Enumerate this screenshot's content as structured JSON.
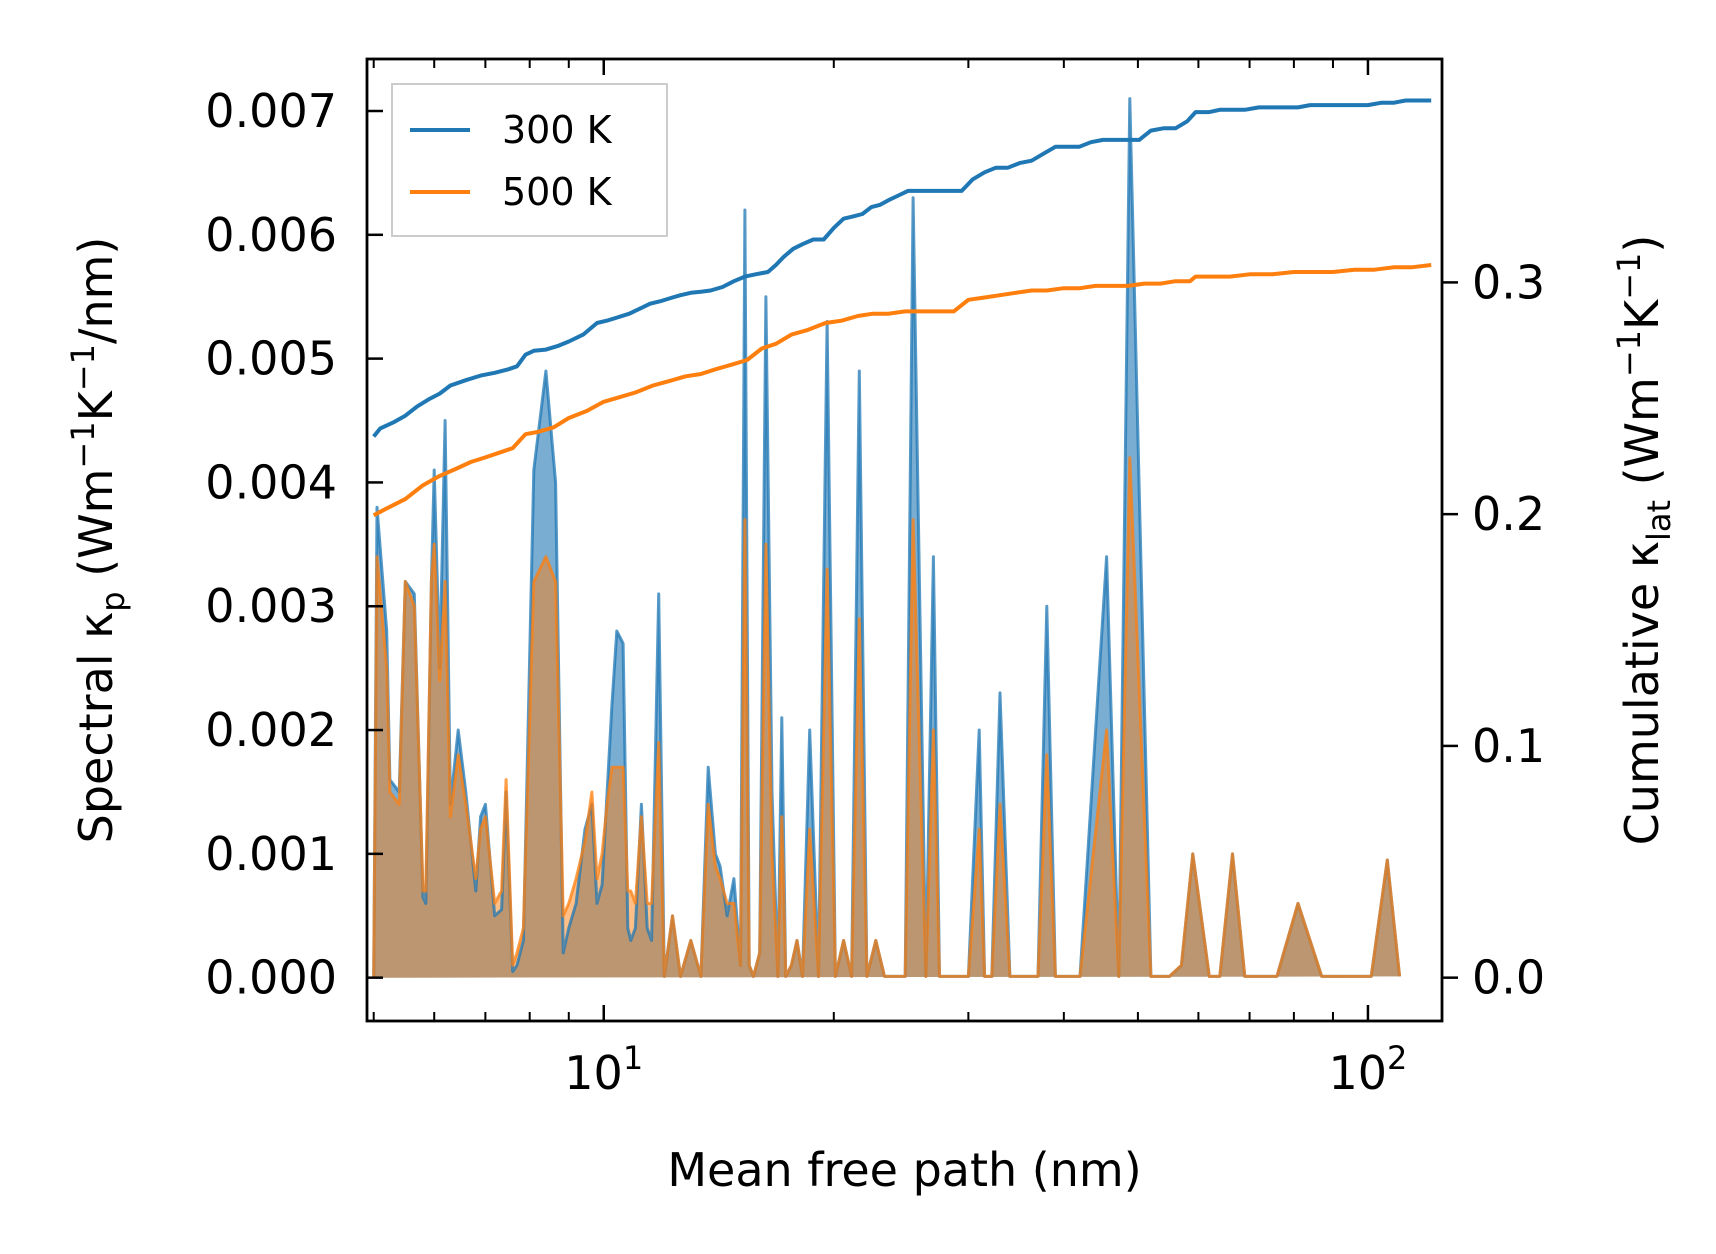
{
  "chart_data": {
    "type": "line",
    "xscale": "log",
    "xlim": [
      4.9,
      125
    ],
    "ylim_left": [
      -0.00035,
      0.00742
    ],
    "ylim_right": [
      -0.0187,
      0.3964
    ],
    "xlabel": "Mean free path (nm)",
    "ylabel_left": {
      "main": "Spectral κ",
      "sub": "p",
      "unit_open": " (Wm",
      "exp1": "−1",
      "unit_mid": "K",
      "exp2": "−1",
      "unit_close": "/nm)"
    },
    "ylabel_right": {
      "main": "Cumulative κ",
      "sub": "lat",
      "unit_open": " (Wm",
      "exp1": "−1",
      "unit_mid": "K",
      "exp2": "−1",
      "unit_close": ")"
    },
    "x_ticks_major": [
      {
        "value": 10,
        "base": "10",
        "exp": "1"
      },
      {
        "value": 100,
        "base": "10",
        "exp": "2"
      }
    ],
    "y_ticks_left": [
      {
        "value": 0.0,
        "label": "0.000"
      },
      {
        "value": 0.001,
        "label": "0.001"
      },
      {
        "value": 0.002,
        "label": "0.002"
      },
      {
        "value": 0.003,
        "label": "0.003"
      },
      {
        "value": 0.004,
        "label": "0.004"
      },
      {
        "value": 0.005,
        "label": "0.005"
      },
      {
        "value": 0.006,
        "label": "0.006"
      },
      {
        "value": 0.007,
        "label": "0.007"
      }
    ],
    "y_ticks_right": [
      {
        "value": 0.0,
        "label": "0.0"
      },
      {
        "value": 0.1,
        "label": "0.1"
      },
      {
        "value": 0.2,
        "label": "0.2"
      },
      {
        "value": 0.3,
        "label": "0.3"
      }
    ],
    "legend": {
      "position": "top-left",
      "entries": [
        "300 K",
        "500 K"
      ]
    },
    "series": [
      {
        "name": "300 K",
        "color": "#1f77b4",
        "spectral_x": [
          5,
          5.05,
          5.2,
          5.25,
          5.4,
          5.5,
          5.65,
          5.8,
          5.85,
          5.95,
          6.0,
          6.1,
          6.2,
          6.3,
          6.45,
          6.6,
          6.8,
          6.9,
          7.0,
          7.2,
          7.35,
          7.45,
          7.6,
          7.7,
          7.85,
          8.1,
          8.4,
          8.65,
          8.85,
          9.0,
          9.2,
          9.45,
          9.65,
          9.8,
          9.95,
          10.1,
          10.25,
          10.4,
          10.6,
          10.75,
          10.85,
          11.0,
          11.2,
          11.4,
          11.55,
          11.8,
          12.0,
          12.3,
          12.6,
          13.0,
          13.4,
          13.7,
          14.0,
          14.2,
          14.5,
          14.8,
          15.1,
          15.3,
          15.5,
          15.7,
          16.0,
          16.3,
          16.6,
          16.9,
          17.1,
          17.3,
          17.6,
          17.9,
          18.2,
          18.6,
          19.1,
          19.6,
          20.1,
          20.6,
          21.1,
          21.6,
          22.1,
          22.7,
          23.3,
          24.2,
          24.8,
          25.4,
          26.4,
          27.0,
          27.5,
          28.5,
          30.0,
          31.0,
          31.5,
          32.2,
          33.0,
          34.0,
          35.5,
          36.2,
          37.0,
          38.0,
          39.0,
          40.0,
          42.0,
          45.5,
          47.2,
          48.8,
          52.0,
          55.0,
          57.0,
          59.0,
          62.0,
          64.0,
          66.5,
          69.0,
          76.0,
          81.0,
          87.0,
          96.0,
          101.0,
          106.0,
          110.0,
          115.0,
          120.0
        ],
        "spectral_y": [
          0,
          0.0038,
          0.0028,
          0.0016,
          0.0015,
          0.0032,
          0.0031,
          0.00065,
          0.0006,
          0.0032,
          0.0041,
          0.0025,
          0.0045,
          0.0014,
          0.002,
          0.0015,
          0.0007,
          0.0013,
          0.0014,
          0.0005,
          0.00055,
          0.0015,
          5e-05,
          0.0001,
          0.0003,
          0.0041,
          0.0049,
          0.004,
          0.0002,
          0.0004,
          0.0006,
          0.0012,
          0.0014,
          0.0006,
          0.00075,
          0.0015,
          0.0022,
          0.0028,
          0.0027,
          0.0004,
          0.0003,
          0.0004,
          0.0014,
          0.0004,
          0.0003,
          0.0031,
          1e-05,
          0.0005,
          1e-05,
          0.0003,
          1e-05,
          0.0017,
          0.001,
          0.0009,
          0.0005,
          0.0008,
          0.0001,
          0.0062,
          0.0001,
          1e-05,
          0.0002,
          0.0055,
          0.0015,
          1e-05,
          0.0021,
          1e-05,
          0.0001,
          0.0003,
          1e-05,
          0.002,
          1e-05,
          0.0053,
          1e-05,
          0.0003,
          1e-05,
          0.0049,
          1e-05,
          0.0003,
          1e-05,
          1e-05,
          1e-05,
          0.0063,
          1e-05,
          0.0034,
          1e-05,
          1e-05,
          1e-05,
          0.002,
          1e-05,
          1e-05,
          0.0023,
          1e-05,
          1e-05,
          1e-05,
          1e-05,
          0.003,
          1e-05,
          1e-05,
          1e-05,
          0.0034,
          1e-05,
          0.0071,
          1e-05,
          1e-05,
          0.0001,
          0.001,
          1e-05,
          1e-05,
          0.001,
          1e-05,
          1e-05,
          0.0006,
          1e-05,
          1e-05,
          1e-05,
          0.00095,
          1e-05
        ],
        "cumulative_x": [
          5,
          5.1,
          5.3,
          5.5,
          5.7,
          5.9,
          6.1,
          6.3,
          6.6,
          6.9,
          7.2,
          7.5,
          7.7,
          7.9,
          8.1,
          8.4,
          8.7,
          9.0,
          9.4,
          9.8,
          10.1,
          10.4,
          10.8,
          11.2,
          11.5,
          11.9,
          12.3,
          12.6,
          13.0,
          13.4,
          13.8,
          14.3,
          14.8,
          15.3,
          15.8,
          16.1,
          16.4,
          16.8,
          17.2,
          17.7,
          18.2,
          18.8,
          19.4,
          20.0,
          20.6,
          21.2,
          21.8,
          22.4,
          23.0,
          23.6,
          24.3,
          25.0,
          25.8,
          26.6,
          27.4,
          28.4,
          29.4,
          30.4,
          31.5,
          32.6,
          33.8,
          35.0,
          36.3,
          37.6,
          39.0,
          40.4,
          41.9,
          43.4,
          45.0,
          46.7,
          48.4,
          50.2,
          52.0,
          54.0,
          56.0,
          58.0,
          59.5,
          62.0,
          64.0,
          66.5,
          69.0,
          72.0,
          75.0,
          78.0,
          81.0,
          84.0,
          88.0,
          92.0,
          96.0,
          100.0,
          104.0,
          108.0,
          112.0,
          117.0,
          121.0
        ],
        "cumulative_y": [
          0.2335,
          0.237,
          0.2395,
          0.2425,
          0.2465,
          0.2495,
          0.252,
          0.2555,
          0.2578,
          0.2598,
          0.261,
          0.2625,
          0.2638,
          0.2688,
          0.2705,
          0.271,
          0.2725,
          0.2745,
          0.2775,
          0.2825,
          0.2835,
          0.2848,
          0.2865,
          0.289,
          0.2908,
          0.292,
          0.2935,
          0.2945,
          0.2955,
          0.296,
          0.2965,
          0.298,
          0.3005,
          0.3025,
          0.3035,
          0.304,
          0.3045,
          0.3075,
          0.311,
          0.3145,
          0.3165,
          0.3185,
          0.3185,
          0.3235,
          0.3275,
          0.3285,
          0.3295,
          0.3325,
          0.3335,
          0.3355,
          0.3375,
          0.3395,
          0.3395,
          0.3395,
          0.3395,
          0.3395,
          0.3395,
          0.3445,
          0.3475,
          0.3495,
          0.3495,
          0.3515,
          0.3525,
          0.3555,
          0.3585,
          0.3585,
          0.3585,
          0.3605,
          0.3615,
          0.3615,
          0.3615,
          0.3615,
          0.3655,
          0.3665,
          0.3665,
          0.3695,
          0.3735,
          0.3735,
          0.3745,
          0.3745,
          0.3745,
          0.3755,
          0.3755,
          0.3755,
          0.3755,
          0.3765,
          0.3765,
          0.3765,
          0.3765,
          0.3765,
          0.3775,
          0.3775,
          0.3785,
          0.3785,
          0.3785
        ]
      },
      {
        "name": "500 K",
        "color": "#ff7f0e",
        "spectral_x": [
          5,
          5.05,
          5.2,
          5.25,
          5.4,
          5.5,
          5.65,
          5.8,
          5.85,
          5.95,
          6.0,
          6.1,
          6.2,
          6.3,
          6.45,
          6.6,
          6.8,
          6.9,
          7.0,
          7.2,
          7.35,
          7.45,
          7.6,
          7.7,
          7.85,
          8.1,
          8.4,
          8.65,
          8.85,
          9.0,
          9.2,
          9.45,
          9.65,
          9.8,
          9.95,
          10.1,
          10.25,
          10.4,
          10.6,
          10.75,
          10.85,
          11.0,
          11.2,
          11.4,
          11.55,
          11.8,
          12.0,
          12.3,
          12.6,
          13.0,
          13.4,
          13.7,
          14.0,
          14.2,
          14.5,
          14.8,
          15.1,
          15.3,
          15.5,
          15.7,
          16.0,
          16.3,
          16.6,
          16.9,
          17.1,
          17.3,
          17.6,
          17.9,
          18.2,
          18.6,
          19.1,
          19.6,
          20.1,
          20.6,
          21.1,
          21.6,
          22.1,
          22.7,
          23.3,
          24.2,
          24.8,
          25.4,
          26.4,
          27.0,
          27.5,
          28.5,
          30.0,
          31.0,
          31.5,
          32.2,
          33.0,
          34.0,
          35.5,
          36.2,
          37.0,
          38.0,
          39.0,
          40.0,
          42.0,
          45.5,
          47.2,
          48.8,
          52.0,
          55.0,
          57.0,
          59.0,
          62.0,
          64.0,
          66.5,
          69.0,
          76.0,
          81.0,
          87.0,
          96.0,
          101.0,
          106.0,
          110.0,
          115.0,
          120.0
        ],
        "spectral_y": [
          0,
          0.0034,
          0.0025,
          0.0015,
          0.0014,
          0.0032,
          0.003,
          0.0007,
          0.0007,
          0.0032,
          0.0035,
          0.0024,
          0.0032,
          0.0013,
          0.0018,
          0.0014,
          0.0008,
          0.0012,
          0.0013,
          0.0006,
          0.0007,
          0.0016,
          0.0001,
          0.0002,
          0.0004,
          0.0032,
          0.0034,
          0.0032,
          0.0005,
          0.0006,
          0.0008,
          0.0011,
          0.0015,
          0.0008,
          0.001,
          0.0014,
          0.0017,
          0.0017,
          0.0017,
          0.0007,
          0.0007,
          0.0006,
          0.0013,
          0.0006,
          0.0006,
          0.0019,
          1e-05,
          0.0005,
          1e-05,
          0.0003,
          1e-05,
          0.0014,
          0.0009,
          0.0008,
          0.0006,
          0.0006,
          0.0001,
          0.0037,
          0.0001,
          1e-05,
          0.0002,
          0.0035,
          0.001,
          1e-05,
          0.0013,
          1e-05,
          0.0001,
          0.0003,
          1e-05,
          0.0012,
          1e-05,
          0.0033,
          1e-05,
          0.0003,
          1e-05,
          0.0029,
          1e-05,
          0.0003,
          1e-05,
          1e-05,
          1e-05,
          0.0037,
          1e-05,
          0.002,
          1e-05,
          1e-05,
          1e-05,
          0.0012,
          1e-05,
          1e-05,
          0.0014,
          1e-05,
          1e-05,
          1e-05,
          1e-05,
          0.0018,
          1e-05,
          1e-05,
          1e-05,
          0.002,
          1e-05,
          0.0042,
          1e-05,
          1e-05,
          0.0001,
          0.001,
          1e-05,
          1e-05,
          0.001,
          1e-05,
          1e-05,
          0.0006,
          1e-05,
          1e-05,
          1e-05,
          0.00095,
          1e-05
        ],
        "cumulative_x": [
          5,
          5.2,
          5.5,
          5.8,
          6.1,
          6.4,
          6.7,
          7.0,
          7.3,
          7.6,
          7.9,
          8.2,
          8.6,
          9.0,
          9.5,
          10.0,
          10.5,
          11.0,
          11.6,
          12.2,
          12.8,
          13.4,
          14.0,
          14.7,
          15.4,
          16.1,
          16.8,
          17.6,
          18.5,
          19.5,
          20.5,
          21.5,
          22.5,
          23.6,
          24.8,
          26.0,
          27.3,
          28.7,
          30.0,
          31.5,
          33.0,
          34.6,
          36.3,
          38.0,
          40.0,
          42.0,
          44.0,
          46.0,
          48.5,
          51.0,
          53.5,
          56.0,
          58.5,
          59.5,
          62.0,
          66.0,
          70.0,
          75.0,
          80.0,
          85.0,
          90.0,
          96.0,
          102.0,
          108.0,
          114.0,
          121.0
        ],
        "cumulative_y": [
          0.1995,
          0.2025,
          0.2065,
          0.2125,
          0.2165,
          0.2195,
          0.2225,
          0.2245,
          0.2265,
          0.2285,
          0.2345,
          0.2355,
          0.2375,
          0.2415,
          0.2445,
          0.2485,
          0.2505,
          0.2525,
          0.2555,
          0.2575,
          0.2595,
          0.2605,
          0.2625,
          0.2645,
          0.2665,
          0.2715,
          0.2735,
          0.2775,
          0.2795,
          0.2825,
          0.2835,
          0.2855,
          0.2865,
          0.2865,
          0.2875,
          0.2875,
          0.2875,
          0.2875,
          0.2925,
          0.2935,
          0.2945,
          0.2955,
          0.2965,
          0.2965,
          0.2975,
          0.2975,
          0.2985,
          0.2985,
          0.2985,
          0.2995,
          0.2995,
          0.3005,
          0.3005,
          0.3025,
          0.3025,
          0.3025,
          0.3035,
          0.3035,
          0.3045,
          0.3045,
          0.3045,
          0.3055,
          0.3055,
          0.3065,
          0.3065,
          0.3075
        ]
      }
    ]
  }
}
